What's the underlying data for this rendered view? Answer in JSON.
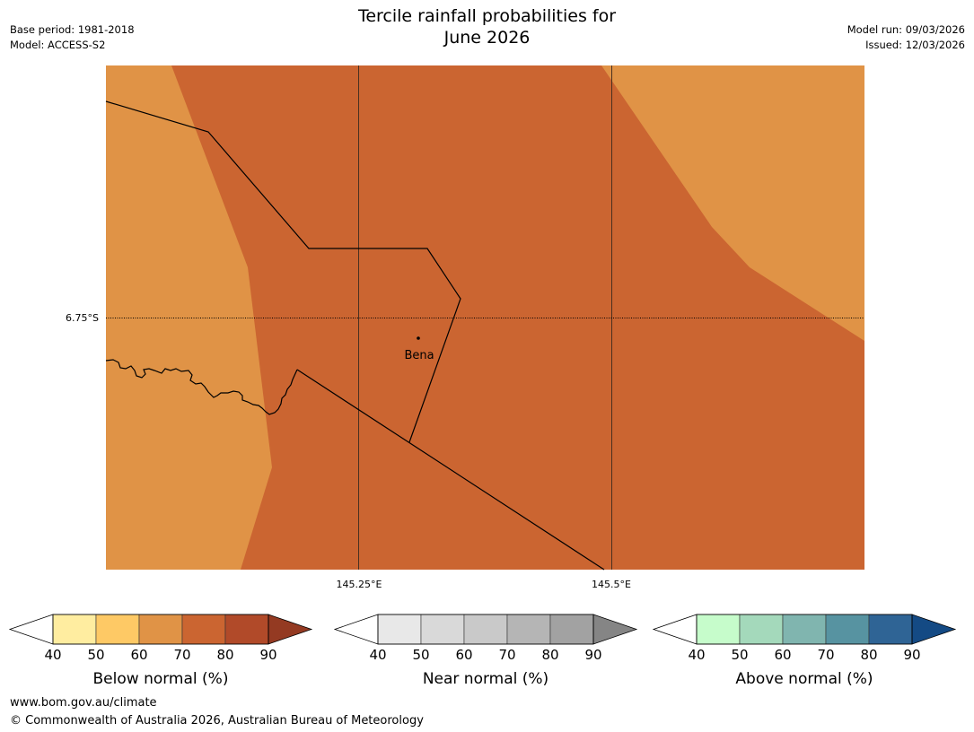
{
  "header": {
    "title_line1": "Tercile rainfall probabilities for",
    "title_line2": "June 2026",
    "base_period": "Base period: 1981-2018",
    "model": "Model: ACCESS-S2",
    "model_run": "Model run: 09/03/2026",
    "issued": "Issued: 12/03/2026"
  },
  "map": {
    "lat_label": "6.75°S",
    "lon_labels": [
      "145.25°E",
      "145.5°E"
    ],
    "place": "Bena",
    "colors": {
      "below_60_70": "#e09346",
      "below_70_80": "#cb6531",
      "border": "#000000",
      "gridline": "#4a3020"
    }
  },
  "colorbars": [
    {
      "id": "below",
      "label": "Below normal (%)",
      "ticks": [
        "40",
        "50",
        "60",
        "70",
        "80",
        "90"
      ],
      "under_color": "#ffffff",
      "colors": [
        "#ffeda0",
        "#fec965",
        "#e09346",
        "#cb6531",
        "#b14a29"
      ],
      "over_color": "#943a22"
    },
    {
      "id": "near",
      "label": "Near normal (%)",
      "ticks": [
        "40",
        "50",
        "60",
        "70",
        "80",
        "90"
      ],
      "under_color": "#ffffff",
      "colors": [
        "#e8e8e8",
        "#d9d9d9",
        "#c9c9c9",
        "#b5b5b5",
        "#a2a2a2"
      ],
      "over_color": "#858585"
    },
    {
      "id": "above",
      "label": "Above normal (%)",
      "ticks": [
        "40",
        "50",
        "60",
        "70",
        "80",
        "90"
      ],
      "under_color": "#ffffff",
      "colors": [
        "#c6fccb",
        "#a4d9bb",
        "#80b5af",
        "#5793a1",
        "#2f6495"
      ],
      "over_color": "#144a84"
    }
  ],
  "footer": {
    "url": "www.bom.gov.au/climate",
    "copyright": "© Commonwealth of Australia 2026, Australian Bureau of Meteorology"
  }
}
